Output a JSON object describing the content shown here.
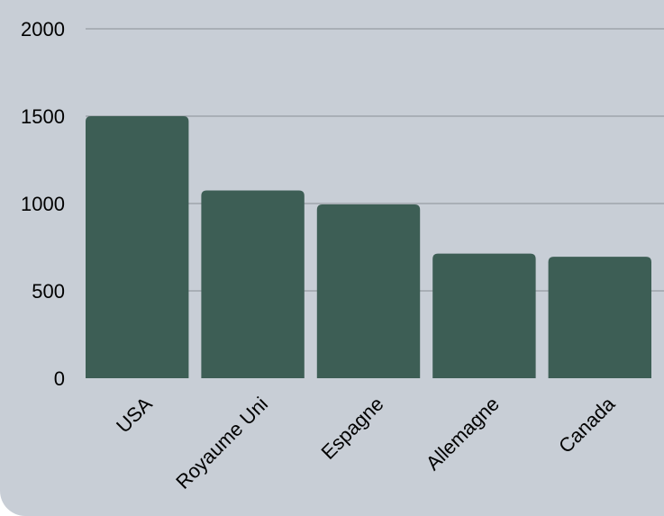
{
  "chart_data": {
    "type": "bar",
    "categories": [
      "USA",
      "Royaume Uni",
      "Espagne",
      "Allemagne",
      "Canada"
    ],
    "values": [
      1500,
      1075,
      995,
      713,
      695
    ],
    "ylim": [
      0,
      2000
    ],
    "yticks": [
      "0",
      "500",
      "1000",
      "1500",
      "2000"
    ],
    "grid": true,
    "legend": "none",
    "colors": {
      "bar": "#3d5e55",
      "background": "#c8ced6",
      "gridline": "#8a9096"
    }
  }
}
